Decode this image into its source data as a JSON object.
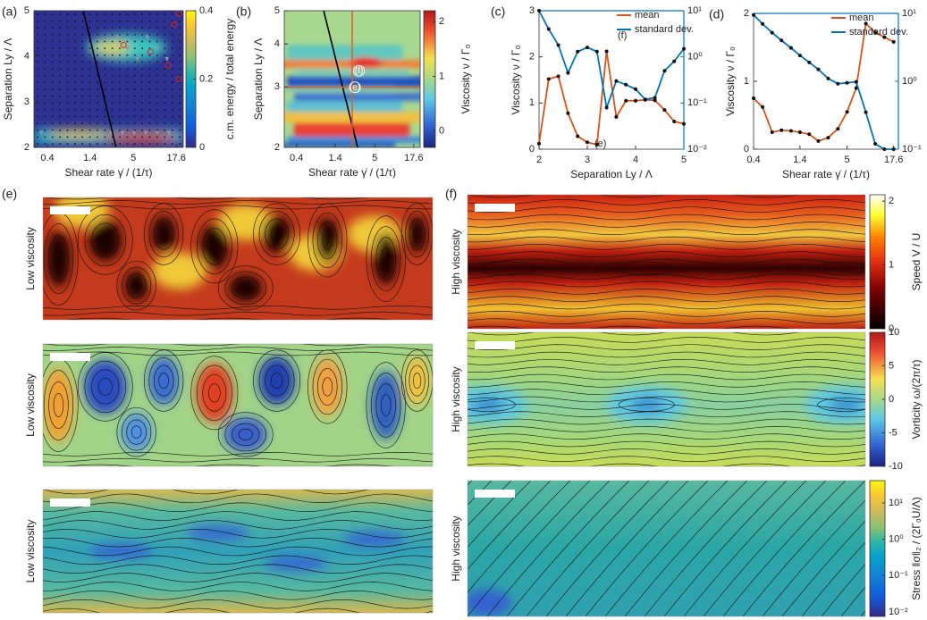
{
  "chart_data": [
    {
      "type": "heatmap",
      "panel_label": "(a)",
      "xlabel": "Shear rate γ̇ / (1/τ)",
      "ylabel": "Separation Ly / Λ",
      "xscale": "log",
      "xlim": [
        0.27,
        21.6
      ],
      "xticks": [
        0.4,
        1.4,
        5,
        17.6
      ],
      "ylim": [
        2,
        5
      ],
      "yticks": [
        2,
        3,
        4,
        5
      ],
      "colorbar": {
        "label": "c.m. energy / total energy",
        "lim": [
          0,
          0.4
        ],
        "ticks": [
          0,
          0.2,
          0.4
        ],
        "colormap": "parula"
      }
    },
    {
      "type": "heatmap",
      "panel_label": "(b)",
      "xlabel": "Shear rate γ̇ / (1/τ)",
      "ylabel": "Separation Ly / Λ",
      "xscale": "log",
      "xlim": [
        0.27,
        21.6
      ],
      "xticks": [
        0.4,
        1.4,
        5,
        17.6
      ],
      "yscale": "log",
      "ylim": [
        2,
        5
      ],
      "yticks": [
        2,
        3,
        4,
        5
      ],
      "annotations": [
        "(f)",
        "(e)"
      ],
      "colorbar": {
        "label": "Viscosity ν / Γ₀",
        "lim": [
          -0.3,
          2.2
        ],
        "ticks": [
          0,
          1,
          2
        ],
        "colormap": "jet"
      }
    },
    {
      "type": "line",
      "panel_label": "(c)",
      "xlabel": "Separation Ly / Λ",
      "ylabel": "Viscosity ν / Γ₀",
      "xlim": [
        2,
        5
      ],
      "xticks": [
        2,
        3,
        4,
        5
      ],
      "ylim": [
        0,
        3
      ],
      "yticks": [
        0,
        1,
        2,
        3
      ],
      "y2scale": "log",
      "y2lim": [
        0.01,
        10
      ],
      "y2ticks": [
        {
          "value": 0.01,
          "label": "10⁻²"
        },
        {
          "value": 0.1,
          "label": "10⁻¹"
        },
        {
          "value": 1,
          "label": "10⁰"
        },
        {
          "value": 10,
          "label": "10¹"
        }
      ],
      "legend": "upper right",
      "annotations": [
        "(f)",
        "(e)"
      ],
      "x": [
        2,
        2.2,
        2.4,
        2.6,
        2.8,
        3,
        3.2,
        3.4,
        3.6,
        3.8,
        4,
        4.2,
        4.4,
        4.6,
        4.8,
        5
      ],
      "series": [
        {
          "name": "mean",
          "color": "#d95319",
          "values": [
            0.12,
            1.52,
            1.58,
            0.78,
            0.28,
            0.15,
            0.1,
            2.12,
            0.7,
            1.05,
            1.05,
            1.07,
            1.06,
            0.85,
            0.6,
            0.55
          ]
        },
        {
          "name": "standard dev.",
          "color": "#0072bd",
          "axis": "y2",
          "values": [
            10,
            4,
            1.8,
            0.45,
            1.3,
            1.6,
            1.3,
            0.08,
            0.3,
            0.25,
            0.2,
            0.12,
            0.13,
            0.5,
            0.8,
            1.5
          ]
        }
      ]
    },
    {
      "type": "line",
      "panel_label": "(d)",
      "xlabel": "Shear rate γ̇ / (1/τ)",
      "ylabel": "Viscosity ν / Γ₀",
      "xscale": "log",
      "xlim": [
        0.4,
        20
      ],
      "xticks": [
        0.4,
        1.4,
        5,
        17.6
      ],
      "ylim": [
        0,
        2
      ],
      "yticks": [
        0,
        1,
        2
      ],
      "y2scale": "log",
      "y2lim": [
        0.1,
        10
      ],
      "y2ticks": [
        {
          "value": 0.1,
          "label": "10⁻¹"
        },
        {
          "value": 1,
          "label": "10⁰"
        },
        {
          "value": 10,
          "label": "10¹"
        }
      ],
      "legend": "upper right",
      "x": [
        0.4,
        0.51,
        0.66,
        0.85,
        1.1,
        1.4,
        1.8,
        2.3,
        3,
        3.9,
        5,
        6.4,
        8.3,
        10.7,
        13.7,
        17.6
      ],
      "series": [
        {
          "name": "mean",
          "color": "#d95319",
          "values": [
            0.75,
            0.62,
            0.25,
            0.28,
            0.27,
            0.25,
            0.22,
            0.12,
            0.17,
            0.3,
            0.55,
            0.9,
            1.85,
            1.72,
            1.65,
            1.58
          ]
        },
        {
          "name": "standard dev.",
          "color": "#0072bd",
          "axis": "y2",
          "values": [
            9.5,
            7,
            5.2,
            4,
            3.1,
            2.4,
            1.9,
            1.5,
            1.1,
            0.92,
            0.95,
            0.98,
            0.35,
            0.12,
            0.1,
            0.1
          ]
        }
      ]
    }
  ],
  "flow_fields": [
    {
      "panel_label": "(e)",
      "rows": [
        "Low viscosity",
        "Low viscosity",
        "Low viscosity"
      ]
    },
    {
      "panel_label": "(f)",
      "rows": [
        "High viscosity",
        "High viscosity",
        "High viscosity"
      ]
    }
  ],
  "colorbars": [
    {
      "label": "Speed V / U",
      "lim": [
        0,
        2.1
      ],
      "ticks": [
        0,
        1,
        2
      ],
      "colormap": "hot"
    },
    {
      "label": "Vorticity ω/(2π/τ)",
      "lim": [
        -10,
        10
      ],
      "ticks": [
        -10,
        -5,
        0,
        5,
        10
      ],
      "colormap": "jet"
    },
    {
      "label": "Stress ‖σ‖₂ / (2Γ₀U/Λ)",
      "scale": "log",
      "lim": [
        0.0075,
        41
      ],
      "ticks": [
        {
          "value": 0.01,
          "label": "10⁻²"
        },
        {
          "value": 0.1,
          "label": "10⁻¹"
        },
        {
          "value": 1,
          "label": "10⁰"
        },
        {
          "value": 10,
          "label": "10¹"
        }
      ],
      "colormap": "parula"
    }
  ]
}
